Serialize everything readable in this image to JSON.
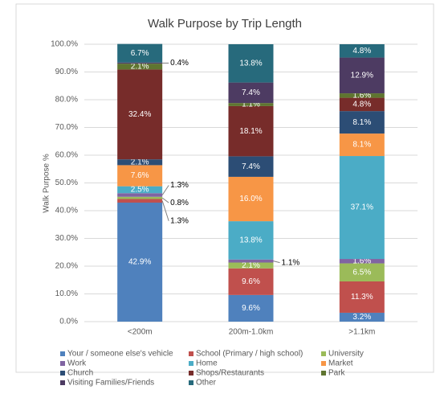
{
  "chart_data": {
    "type": "stacked_bar",
    "title": "Walk Purpose by Trip Length",
    "y_label": "Walk Purpose %",
    "categories": [
      "<200m",
      "200m-1.0km",
      ">1.1km"
    ],
    "ylim": [
      0,
      100
    ],
    "yticks": [
      {
        "value": 0,
        "label": "0.0%"
      },
      {
        "value": 10,
        "label": "10.0%"
      },
      {
        "value": 20,
        "label": "20.0%"
      },
      {
        "value": 30,
        "label": "30.0%"
      },
      {
        "value": 40,
        "label": "40.0%"
      },
      {
        "value": 50,
        "label": "50.0%"
      },
      {
        "value": 60,
        "label": "60.0%"
      },
      {
        "value": 70,
        "label": "70.0%"
      },
      {
        "value": 80,
        "label": "80.0%"
      },
      {
        "value": 90,
        "label": "90.0%"
      },
      {
        "value": 100,
        "label": "100.0%"
      }
    ],
    "grid": true,
    "legend": "bottom",
    "series": [
      {
        "name": "Your / someone else's vehicle",
        "color": "#4f81bd",
        "values": [
          42.9,
          9.6,
          3.2
        ],
        "value_labels": [
          "42.9%",
          "9.6%",
          "3.2%"
        ]
      },
      {
        "name": "School (Primary / high school)",
        "color": "#c0504d",
        "values": [
          1.3,
          9.6,
          11.3
        ],
        "value_labels": [
          "1.3%",
          "9.6%",
          "11.3%"
        ]
      },
      {
        "name": "University",
        "color": "#9bbb59",
        "values": [
          0.8,
          2.1,
          6.5
        ],
        "value_labels": [
          "0.8%",
          "2.1%",
          "6.5%"
        ]
      },
      {
        "name": "Work",
        "color": "#8064a2",
        "values": [
          1.3,
          1.1,
          1.6
        ],
        "value_labels": [
          "1.3%",
          "1.1%",
          "1.6%"
        ]
      },
      {
        "name": "Home",
        "color": "#4bacc6",
        "values": [
          2.5,
          13.8,
          37.1
        ],
        "value_labels": [
          "2.5%",
          "13.8%",
          "37.1%"
        ]
      },
      {
        "name": "Market",
        "color": "#f79646",
        "values": [
          7.6,
          16.0,
          8.1
        ],
        "value_labels": [
          "7.6%",
          "16.0%",
          "8.1%"
        ]
      },
      {
        "name": "Church",
        "color": "#2c4d75",
        "values": [
          2.1,
          7.4,
          8.1
        ],
        "value_labels": [
          "2.1%",
          "7.4%",
          "8.1%"
        ]
      },
      {
        "name": "Shops/Restaurants",
        "color": "#772c2a",
        "values": [
          32.4,
          18.1,
          4.8
        ],
        "value_labels": [
          "32.4%",
          "18.1%",
          "4.8%"
        ]
      },
      {
        "name": "Park",
        "color": "#5f7530",
        "values": [
          2.1,
          1.1,
          1.6
        ],
        "value_labels": [
          "2.1%",
          "1.1%",
          "1.6%"
        ]
      },
      {
        "name": "Visiting Families/Friends",
        "color": "#4d3b62",
        "values": [
          0.4,
          7.4,
          12.9
        ],
        "value_labels": [
          "0.4%",
          "7.4%",
          "12.9%"
        ]
      },
      {
        "name": "Other",
        "color": "#276a7c",
        "values": [
          6.7,
          13.8,
          4.8
        ],
        "value_labels": [
          "6.7%",
          "13.8%",
          "4.8%"
        ]
      }
    ]
  }
}
